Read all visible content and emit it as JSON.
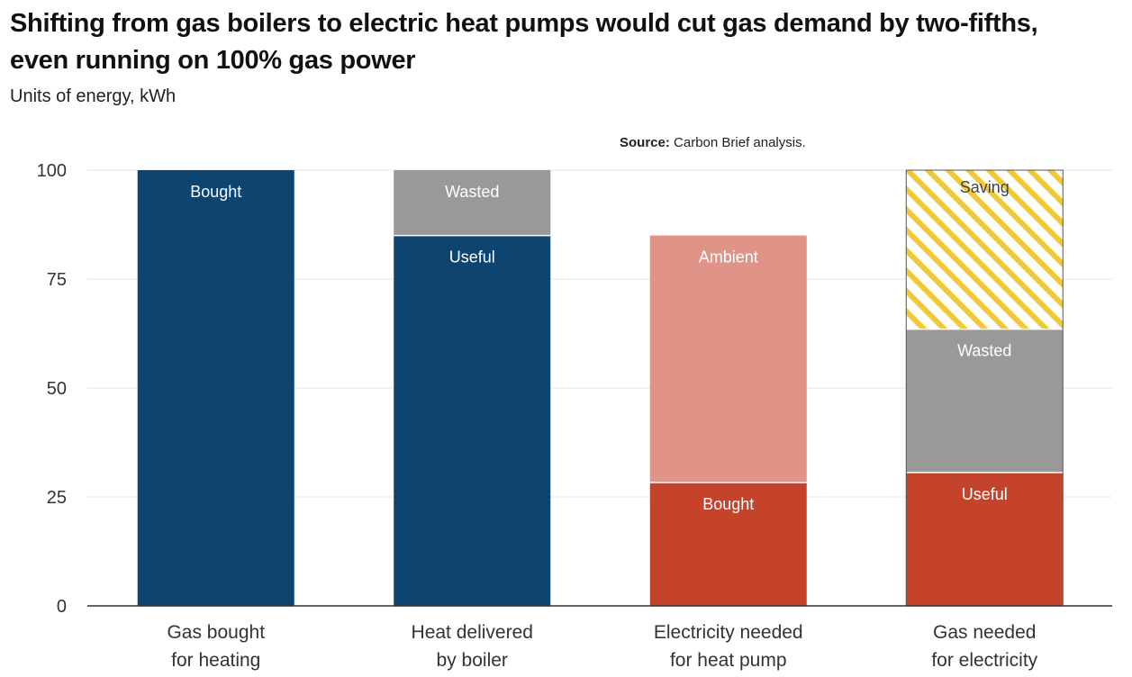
{
  "header": {
    "title": "Shifting from gas boilers to electric heat pumps would cut gas demand by two-fifths, even running on 100% gas power",
    "subtitle": "Units of energy, kWh",
    "source_label": "Source:",
    "source_text": "Carbon Brief analysis."
  },
  "chart_data": {
    "type": "bar",
    "stacked": true,
    "title": "Shifting from gas boilers to electric heat pumps would cut gas demand by two-fifths, even running on 100% gas power",
    "ylabel": "Units of energy, kWh",
    "ylim": [
      0,
      100
    ],
    "yticks": [
      0,
      25,
      50,
      75,
      100
    ],
    "grid": true,
    "categories": [
      [
        "Gas bought",
        "for heating"
      ],
      [
        "Heat delivered",
        "by boiler"
      ],
      [
        "Electricity needed",
        "for heat pump"
      ],
      [
        "Gas needed",
        "for electricity"
      ]
    ],
    "bars": [
      {
        "segments": [
          {
            "label": "Bought",
            "value": 100,
            "color": "#0d4470"
          }
        ]
      },
      {
        "segments": [
          {
            "label": "Useful",
            "value": 85,
            "color": "#0d4470"
          },
          {
            "label": "Wasted",
            "value": 15,
            "color": "#999999"
          }
        ]
      },
      {
        "segments": [
          {
            "label": "Bought",
            "value": 28.3,
            "color": "#c5432b"
          },
          {
            "label": "Ambient",
            "value": 56.7,
            "color": "#e09487"
          }
        ]
      },
      {
        "segments": [
          {
            "label": "Useful",
            "value": 30.6,
            "color": "#c5432b"
          },
          {
            "label": "Wasted",
            "value": 32.9,
            "color": "#999999"
          },
          {
            "label": "Saving",
            "value": 36.5,
            "color": "#f1c936",
            "pattern": "hatch"
          }
        ]
      }
    ],
    "colors": {
      "gas": "#0d4470",
      "wasted": "#999999",
      "electric": "#c5432b",
      "ambient": "#e09487",
      "saving": "#f1c936",
      "grid": "#e6e6e6",
      "axis": "#333333"
    }
  }
}
